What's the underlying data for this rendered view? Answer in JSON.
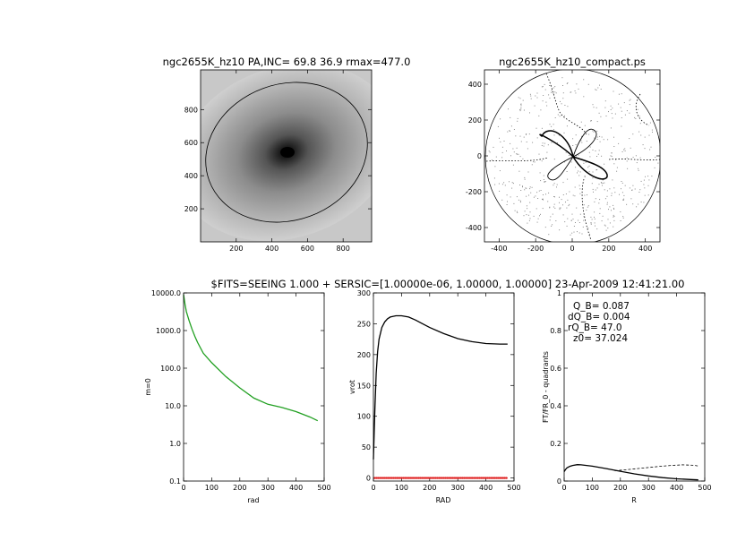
{
  "figure": {
    "caption": "$FITS=SEEING 1.000 + SERSIC=[1.00000e-06, 1.00000, 1.00000]  23-Apr-2009 12:41:21.00"
  },
  "chart_data": [
    {
      "type": "heatmap",
      "title": "ngc2655K_hz10 PA,INC= 69.8 36.9 rmax=477.0",
      "xlabel": "",
      "ylabel": "",
      "xlim": [
        0,
        960
      ],
      "ylim": [
        0,
        1040
      ],
      "xticks": [
        200,
        400,
        600,
        800
      ],
      "yticks": [
        200,
        400,
        600,
        800
      ],
      "center": [
        490,
        520
      ],
      "ellipse": {
        "semi_major": 477,
        "semi_minor": 381,
        "pa_deg": 69.8
      },
      "colormap": "gray"
    },
    {
      "type": "scatter",
      "title": "ngc2655K_hz10_compact.ps",
      "xlabel": "",
      "ylabel": "",
      "xlim": [
        -480,
        480
      ],
      "ylim": [
        -480,
        480
      ],
      "xticks": [
        -400,
        -200,
        0,
        200,
        400
      ],
      "yticks": [
        -400,
        -200,
        0,
        200,
        400
      ],
      "circle_radius": 477
    },
    {
      "type": "line",
      "title": "",
      "xlabel": "rad",
      "ylabel": "m=0",
      "yscale": "log",
      "xlim": [
        0,
        500
      ],
      "ylim": [
        0.1,
        10000
      ],
      "xticks": [
        0,
        100,
        200,
        300,
        400,
        500
      ],
      "yticks": [
        0.1,
        1.0,
        10.0,
        100.0,
        1000.0,
        10000.0
      ],
      "yticklabels": [
        "0.1",
        "1.0",
        "10.0",
        "100.0",
        "1000.0",
        "10000.0"
      ],
      "series": [
        {
          "x": [
            0,
            5,
            10,
            20,
            30,
            40,
            50,
            70,
            100,
            150,
            200,
            250,
            300,
            350,
            400,
            450,
            477
          ],
          "y": [
            9000,
            5000,
            3200,
            1800,
            1100,
            700,
            480,
            250,
            140,
            60,
            30,
            16,
            11,
            9,
            7,
            5,
            4
          ],
          "color": "#22a022"
        }
      ]
    },
    {
      "type": "line",
      "title": "",
      "xlabel": "RAD",
      "ylabel": "vrot",
      "xlim": [
        0,
        500
      ],
      "ylim": [
        -5,
        300
      ],
      "xticks": [
        0,
        100,
        200,
        300,
        400,
        500
      ],
      "yticks": [
        0,
        50,
        100,
        150,
        200,
        250,
        300
      ],
      "series": [
        {
          "x": [
            0,
            5,
            10,
            15,
            20,
            30,
            40,
            50,
            60,
            80,
            100,
            125,
            150,
            175,
            200,
            250,
            300,
            350,
            400,
            450,
            477
          ],
          "y": [
            30,
            110,
            170,
            205,
            225,
            244,
            253,
            258,
            261,
            263,
            263,
            261,
            256,
            250,
            244,
            234,
            226,
            221,
            218,
            217,
            217
          ],
          "color": "#000000"
        },
        {
          "x": [
            0,
            477
          ],
          "y": [
            0,
            0
          ],
          "color": "#e02020"
        }
      ]
    },
    {
      "type": "line",
      "title": "",
      "xlabel": "R",
      "ylabel": "FT/FR_0 - quadrants",
      "xlim": [
        0,
        500
      ],
      "ylim": [
        0,
        1.0
      ],
      "xticks": [
        0,
        100,
        200,
        300,
        400,
        500
      ],
      "yticks": [
        0.0,
        0.2,
        0.4,
        0.6,
        0.8,
        1.0
      ],
      "annotations": [
        "Q_B=  0.087",
        "dQ_B=  0.004",
        "rQ_B=  47.0",
        "z0= 37.024"
      ],
      "series": [
        {
          "x": [
            0,
            5,
            10,
            20,
            30,
            47,
            60,
            80,
            100,
            150,
            200,
            250,
            300,
            350,
            400,
            450,
            477
          ],
          "y": [
            0.05,
            0.062,
            0.07,
            0.078,
            0.083,
            0.087,
            0.086,
            0.083,
            0.079,
            0.066,
            0.052,
            0.038,
            0.027,
            0.018,
            0.012,
            0.008,
            0.006
          ],
          "color": "#000000"
        },
        {
          "x": [
            180,
            220,
            260,
            300,
            340,
            380,
            420,
            460,
            477
          ],
          "y": [
            0.055,
            0.06,
            0.066,
            0.072,
            0.078,
            0.083,
            0.086,
            0.084,
            0.08
          ],
          "color": "#000000",
          "dash": true
        }
      ]
    }
  ]
}
